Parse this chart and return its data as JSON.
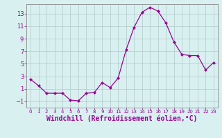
{
  "x": [
    0,
    1,
    2,
    3,
    4,
    5,
    6,
    7,
    8,
    9,
    10,
    11,
    12,
    13,
    14,
    15,
    16,
    17,
    18,
    19,
    20,
    21,
    22,
    23
  ],
  "y": [
    2.5,
    1.5,
    0.3,
    0.3,
    0.3,
    -0.8,
    -0.9,
    0.3,
    0.4,
    2.0,
    1.2,
    2.7,
    7.2,
    10.8,
    13.2,
    14.0,
    13.4,
    11.5,
    8.5,
    6.5,
    6.3,
    6.3,
    4.0,
    5.2
  ],
  "line_color": "#990099",
  "marker": "D",
  "marker_size": 2,
  "bg_color": "#d8f0f0",
  "grid_color": "#b0c8c8",
  "xlabel": "Windchill (Refroidissement éolien,°C)",
  "xlabel_fontsize": 7,
  "tick_color": "#990099",
  "yticks": [
    -1,
    1,
    3,
    5,
    7,
    9,
    11,
    13
  ],
  "xticks": [
    0,
    1,
    2,
    3,
    4,
    5,
    6,
    7,
    8,
    9,
    10,
    11,
    12,
    13,
    14,
    15,
    16,
    17,
    18,
    19,
    20,
    21,
    22,
    23
  ],
  "xlim": [
    -0.5,
    23.5
  ],
  "ylim": [
    -2.0,
    14.5
  ]
}
